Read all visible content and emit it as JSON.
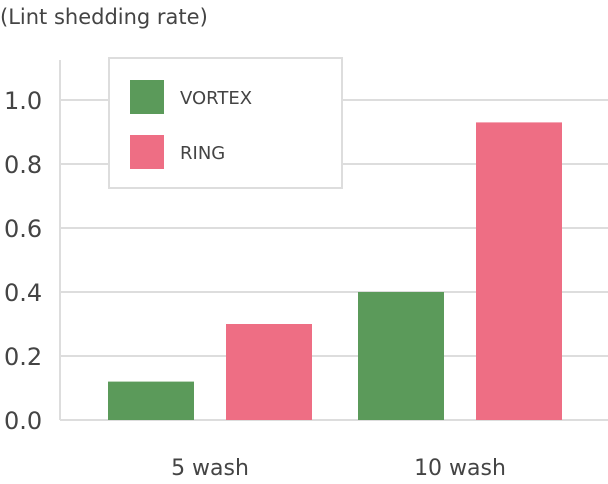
{
  "chart_data": {
    "type": "bar",
    "title": "",
    "xlabel": "",
    "ylabel": "(Lint shedding rate)",
    "categories": [
      "5 wash",
      "10 wash"
    ],
    "series": [
      {
        "name": "VORTEX",
        "values": [
          0.12,
          0.4
        ],
        "color": "#5b9a5a"
      },
      {
        "name": "RING",
        "values": [
          0.3,
          0.93
        ],
        "color": "#ee6e84"
      }
    ],
    "ylim": [
      0,
      1.1
    ],
    "yticks": [
      0.0,
      0.2,
      0.4,
      0.6,
      0.8,
      1.0
    ],
    "ytick_labels": [
      "0.0",
      "0.2",
      "0.4",
      "0.6",
      "0.8",
      "1.0"
    ],
    "grid": true,
    "legend_position": "top-left"
  }
}
